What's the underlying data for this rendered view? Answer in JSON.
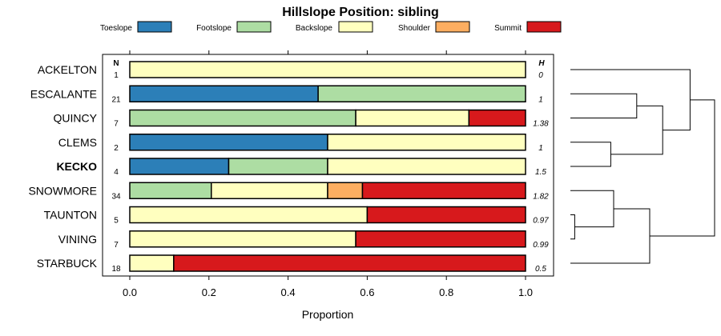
{
  "chart_data": {
    "type": "bar",
    "stacked": true,
    "orientation": "horizontal",
    "title": "Hillslope Position: sibling",
    "xlabel": "Proportion",
    "ylabel": "",
    "xlim": [
      0,
      1
    ],
    "xticks": [
      "0.0",
      "0.2",
      "0.4",
      "0.6",
      "0.8",
      "1.0"
    ],
    "n_header": "N",
    "h_header": "H",
    "legend": [
      {
        "name": "Toeslope",
        "color": "#2c7fb8"
      },
      {
        "name": "Footslope",
        "color": "#addda3"
      },
      {
        "name": "Backslope",
        "color": "#ffffbf"
      },
      {
        "name": "Shoulder",
        "color": "#fdae61"
      },
      {
        "name": "Summit",
        "color": "#d7191c"
      }
    ],
    "highlight": "KECKO",
    "rows": [
      {
        "label": "ACKELTON",
        "n": "1",
        "h": "0",
        "values": [
          0,
          0,
          1.0,
          0,
          0
        ]
      },
      {
        "label": "ESCALANTE",
        "n": "21",
        "h": "1",
        "values": [
          0.476,
          0.524,
          0,
          0,
          0
        ]
      },
      {
        "label": "QUINCY",
        "n": "7",
        "h": "1.38",
        "values": [
          0,
          0.571,
          0.286,
          0,
          0.143
        ]
      },
      {
        "label": "CLEMS",
        "n": "2",
        "h": "1",
        "values": [
          0.5,
          0,
          0.5,
          0,
          0
        ]
      },
      {
        "label": "KECKO",
        "n": "4",
        "h": "1.5",
        "values": [
          0.25,
          0.25,
          0.5,
          0,
          0
        ]
      },
      {
        "label": "SNOWMORE",
        "n": "34",
        "h": "1.82",
        "values": [
          0,
          0.206,
          0.294,
          0.088,
          0.412
        ]
      },
      {
        "label": "TAUNTON",
        "n": "5",
        "h": "0.97",
        "values": [
          0,
          0,
          0.6,
          0,
          0.4
        ]
      },
      {
        "label": "VINING",
        "n": "7",
        "h": "0.99",
        "values": [
          0,
          0,
          0.571,
          0,
          0.429
        ]
      },
      {
        "label": "STARBUCK",
        "n": "18",
        "h": "0.5",
        "values": [
          0,
          0,
          0.111,
          0,
          0.889
        ]
      }
    ]
  }
}
